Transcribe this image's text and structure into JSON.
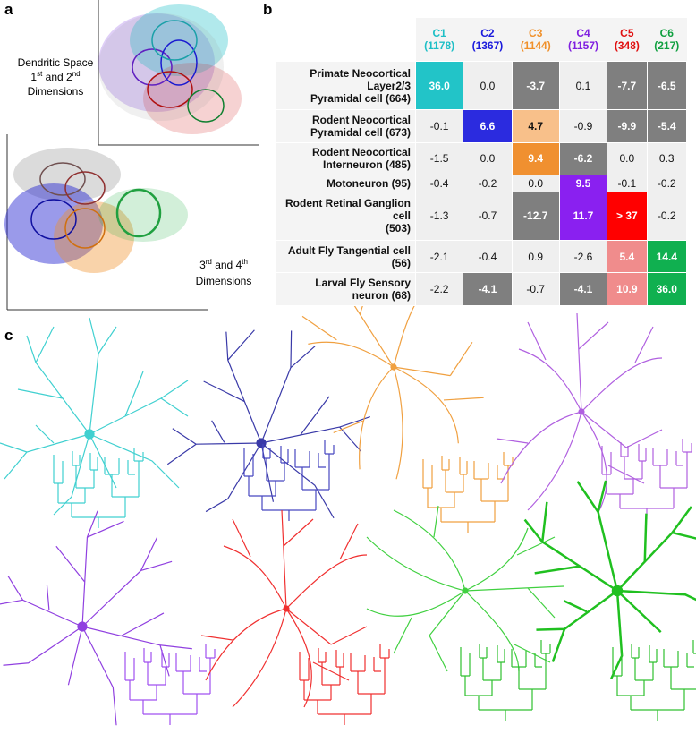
{
  "panel_a": {
    "label": "a",
    "top_text": {
      "line1": "Dendritic Space",
      "n1": "1",
      "s1": "st",
      "mid": " and 2",
      "s2": "nd",
      "line3": "Dimensions"
    },
    "bottom_text": {
      "n1": "3",
      "s1": "rd",
      "mid": " and 4",
      "s2": "th",
      "line2": "Dimensions"
    }
  },
  "panel_b": {
    "label": "b",
    "plain_color": "#efefef",
    "columns": [
      {
        "name": "C1",
        "count": "(1178)",
        "color": "#1fbfc6"
      },
      {
        "name": "C2",
        "count": "(1367)",
        "color": "#1a1adc"
      },
      {
        "name": "C3",
        "count": "(1144)",
        "color": "#f0902a"
      },
      {
        "name": "C4",
        "count": "(1157)",
        "color": "#8020e0"
      },
      {
        "name": "C5",
        "count": "(348)",
        "color": "#e01010"
      },
      {
        "name": "C6",
        "count": "(217)",
        "color": "#10a040"
      }
    ],
    "rows": [
      {
        "label": [
          "Primate Neocortical Layer2/3",
          "Pyramidal cell (664)"
        ],
        "cells": [
          "36.0",
          "0.0",
          "-3.7",
          "0.1",
          "-7.7",
          "-6.5"
        ],
        "colors": [
          "#22c4c8",
          "#efefef",
          "#7f7f7f",
          "#efefef",
          "#7f7f7f",
          "#7f7f7f"
        ]
      },
      {
        "label": [
          "Rodent Neocortical",
          "Pyramidal cell (673)"
        ],
        "cells": [
          "-0.1",
          "6.6",
          "4.7",
          "-0.9",
          "-9.9",
          "-5.4"
        ],
        "colors": [
          "#efefef",
          "#2b2bdf",
          "#f8c08a",
          "#efefef",
          "#7f7f7f",
          "#7f7f7f"
        ]
      },
      {
        "label": [
          "Rodent Neocortical",
          "Interneuron (485)"
        ],
        "cells": [
          "-1.5",
          "0.0",
          "9.4",
          "-6.2",
          "0.0",
          "0.3"
        ],
        "colors": [
          "#efefef",
          "#efefef",
          "#f09030",
          "#7f7f7f",
          "#efefef",
          "#efefef"
        ]
      },
      {
        "label": [
          "Motoneuron (95)"
        ],
        "cells": [
          "-0.4",
          "-0.2",
          "0.0",
          "9.5",
          "-0.1",
          "-0.2"
        ],
        "colors": [
          "#efefef",
          "#efefef",
          "#efefef",
          "#8a20f0",
          "#efefef",
          "#efefef"
        ]
      },
      {
        "label": [
          "Rodent Retinal Ganglion cell",
          "(503)"
        ],
        "cells": [
          "-1.3",
          "-0.7",
          "-12.7",
          "11.7",
          "> 37",
          "-0.2"
        ],
        "colors": [
          "#efefef",
          "#efefef",
          "#7f7f7f",
          "#8a20f0",
          "#ff0000",
          "#efefef"
        ]
      },
      {
        "label": [
          "Adult Fly Tangential cell (56)"
        ],
        "cells": [
          "-2.1",
          "-0.4",
          "0.9",
          "-2.6",
          "5.4",
          "14.4"
        ],
        "colors": [
          "#efefef",
          "#efefef",
          "#efefef",
          "#efefef",
          "#f08c8c",
          "#10b050"
        ]
      },
      {
        "label": [
          "Larval Fly Sensory neuron (68)"
        ],
        "cells": [
          "-2.2",
          "-4.1",
          "-0.7",
          "-4.1",
          "10.9",
          "36.0"
        ],
        "colors": [
          "#efefef",
          "#7f7f7f",
          "#efefef",
          "#7f7f7f",
          "#f08c8c",
          "#10b050"
        ]
      }
    ]
  },
  "panel_c": {
    "label": "c"
  }
}
